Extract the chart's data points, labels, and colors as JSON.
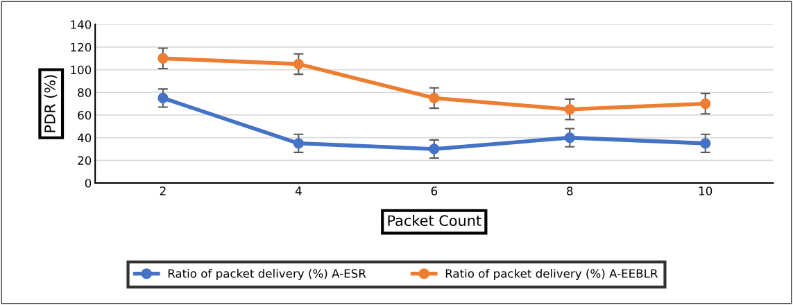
{
  "chart_data": {
    "type": "line",
    "xlabel": "Packet Count",
    "ylabel": "PDR (%)",
    "categories": [
      "2",
      "4",
      "6",
      "8",
      "10"
    ],
    "series": [
      {
        "name": "Ratio of packet delivery (%) A-ESR",
        "color": "#4472c4",
        "values": [
          75,
          35,
          30,
          40,
          35
        ],
        "errors": [
          8,
          8,
          8,
          8,
          8
        ]
      },
      {
        "name": "Ratio of packet delivery (%) A-EEBLR",
        "color": "#ed7d31",
        "values": [
          110,
          105,
          75,
          65,
          70
        ],
        "errors": [
          9,
          9,
          9,
          9,
          9
        ]
      }
    ],
    "ylim": [
      0,
      140
    ],
    "yticks": [
      0,
      20,
      40,
      60,
      80,
      100,
      120,
      140
    ],
    "grid": "y",
    "legend": "bottom",
    "marker": "circle",
    "line_style": "solid"
  }
}
